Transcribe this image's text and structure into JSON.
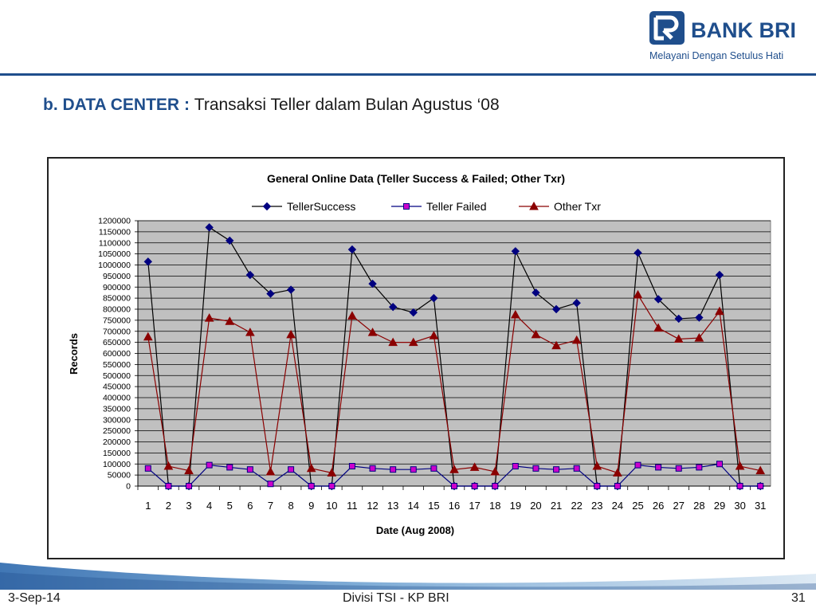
{
  "header": {
    "logo_name": "BANK BRI",
    "logo_tagline": "Melayani Dengan Setulus Hati",
    "brand_color": "#1f4e8c"
  },
  "slide": {
    "title_strong": "b. DATA CENTER",
    "title_colon": " : ",
    "title_rest": "Transaksi Teller dalam Bulan Agustus ‘08"
  },
  "chart_data": {
    "type": "line",
    "title": "General Online Data (Teller Success & Failed; Other Txr)",
    "xlabel": "Date (Aug 2008)",
    "ylabel": "Records",
    "ylim": [
      0,
      1200000
    ],
    "ytick_step": 50000,
    "grid": true,
    "legend_position": "top",
    "plot_background": "#c0c0c0",
    "categories": [
      "1",
      "2",
      "3",
      "4",
      "5",
      "6",
      "7",
      "8",
      "9",
      "10",
      "11",
      "12",
      "13",
      "14",
      "15",
      "16",
      "17",
      "18",
      "19",
      "20",
      "21",
      "22",
      "23",
      "24",
      "25",
      "26",
      "27",
      "28",
      "29",
      "30",
      "31"
    ],
    "series": [
      {
        "name": "TellerSuccess",
        "color": "#000080",
        "line_color": "#000000",
        "marker": "diamond",
        "values": [
          1015000,
          0,
          0,
          1170000,
          1110000,
          955000,
          870000,
          888000,
          0,
          0,
          1070000,
          915000,
          810000,
          785000,
          850000,
          0,
          0,
          0,
          1062000,
          875000,
          800000,
          828000,
          0,
          0,
          1055000,
          845000,
          757000,
          762000,
          955000,
          0,
          0
        ]
      },
      {
        "name": "Teller Failed",
        "color": "#cc00cc",
        "line_color": "#000080",
        "marker": "square",
        "values": [
          80000,
          0,
          0,
          95000,
          85000,
          75000,
          10000,
          75000,
          0,
          0,
          90000,
          80000,
          75000,
          75000,
          80000,
          0,
          0,
          0,
          90000,
          80000,
          75000,
          80000,
          0,
          0,
          95000,
          85000,
          80000,
          85000,
          100000,
          0,
          0
        ]
      },
      {
        "name": "Other Txr",
        "color": "#8b0000",
        "line_color": "#8b0000",
        "marker": "triangle",
        "values": [
          675000,
          90000,
          70000,
          760000,
          745000,
          695000,
          65000,
          685000,
          80000,
          60000,
          770000,
          695000,
          650000,
          650000,
          680000,
          75000,
          85000,
          65000,
          775000,
          685000,
          635000,
          660000,
          90000,
          60000,
          865000,
          715000,
          665000,
          670000,
          790000,
          90000,
          70000
        ]
      }
    ]
  },
  "footer": {
    "date": "3-Sep-14",
    "center": "Divisi TSI - KP BRI",
    "page": "31"
  }
}
